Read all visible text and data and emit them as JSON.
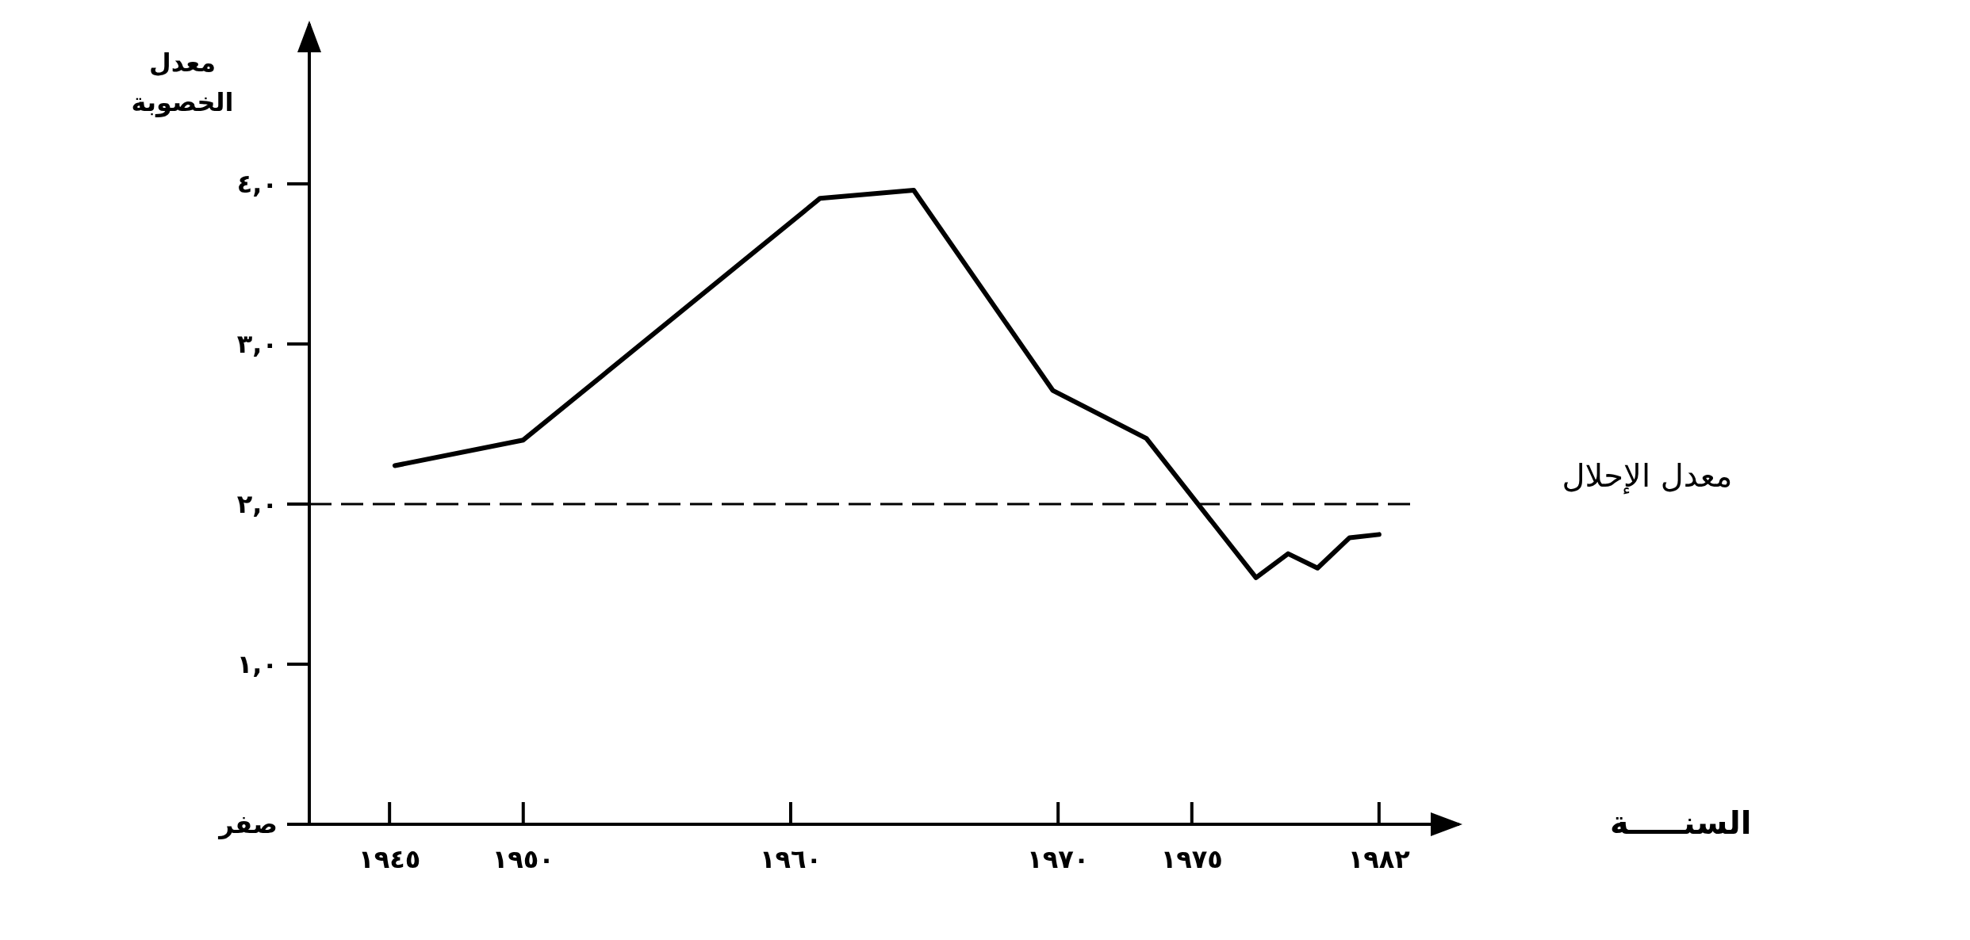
{
  "chart_data": {
    "type": "line",
    "xlabel": "السنـــــة",
    "ylabel": "معدل الخصوبة",
    "xlim": [
      1942,
      1985
    ],
    "ylim": [
      0,
      5
    ],
    "xticks": [
      {
        "value": 1945,
        "label": "١٩٤٥"
      },
      {
        "value": 1950,
        "label": "١٩٥٠"
      },
      {
        "value": 1960,
        "label": "١٩٦٠"
      },
      {
        "value": 1970,
        "label": "١٩٧٠"
      },
      {
        "value": 1975,
        "label": "١٩٧٥"
      },
      {
        "value": 1982,
        "label": "١٩٨٢"
      }
    ],
    "yticks": [
      {
        "value": 0,
        "label": "صفر"
      },
      {
        "value": 1,
        "label": "١,٠"
      },
      {
        "value": 2,
        "label": "٢,٠"
      },
      {
        "value": 3,
        "label": "٣,٠"
      },
      {
        "value": 4,
        "label": "٤,٠"
      }
    ],
    "series": [
      {
        "color": "#000000",
        "x": [
          1945.2,
          1950,
          1961.1,
          1964.6,
          1969.8,
          1973.3,
          1977.4,
          1978.6,
          1979.7,
          1980.9,
          1982
        ],
        "values": [
          2.24,
          2.4,
          3.91,
          3.96,
          2.71,
          2.41,
          1.54,
          1.69,
          1.6,
          1.79,
          1.81
        ]
      }
    ],
    "ref_lines": [
      {
        "axis": "y",
        "value": 2.0,
        "label": "معدل الإحلال",
        "color": "#000000",
        "line_style": "dashed"
      }
    ],
    "marker": "none",
    "line_style": "solid",
    "grid": false
  }
}
